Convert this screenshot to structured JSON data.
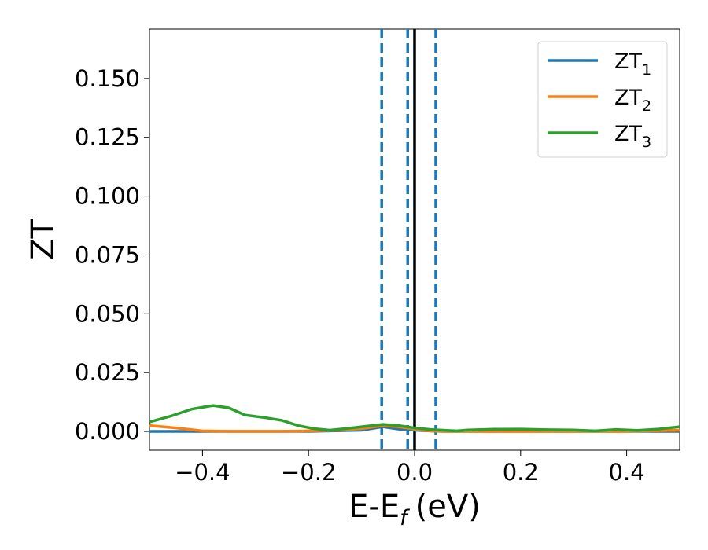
{
  "chart_data": {
    "type": "line",
    "xlabel": "E-E",
    "xlabel_sub": "f",
    "xlabel_unit": "(eV)",
    "ylabel": "ZT",
    "xlim": [
      -0.5,
      0.5
    ],
    "ylim": [
      -0.008,
      0.171
    ],
    "xticks": [
      -0.4,
      -0.2,
      0.0,
      0.2,
      0.4
    ],
    "xtick_labels": [
      "−0.4",
      "−0.2",
      "0.0",
      "0.2",
      "0.4"
    ],
    "yticks": [
      0.0,
      0.025,
      0.05,
      0.075,
      0.1,
      0.125,
      0.15
    ],
    "ytick_labels": [
      "0.000",
      "0.025",
      "0.050",
      "0.075",
      "0.100",
      "0.125",
      "0.150"
    ],
    "grid": false,
    "legend_position": "top-right",
    "vlines": [
      {
        "x": 0.0,
        "style": "solid",
        "color": "#000000"
      },
      {
        "x": -0.062,
        "style": "dashed",
        "color": "#1f77b4"
      },
      {
        "x": -0.013,
        "style": "dashed",
        "color": "#1f77b4"
      },
      {
        "x": 0.04,
        "style": "dashed",
        "color": "#1f77b4"
      }
    ],
    "series": [
      {
        "name": "ZT",
        "name_sub": "1",
        "color": "#1f77b4",
        "x": [
          -0.5,
          -0.4,
          -0.3,
          -0.2,
          -0.1,
          -0.06,
          -0.03,
          0.0,
          0.05,
          0.1,
          0.2,
          0.3,
          0.4,
          0.5
        ],
        "y": [
          0.0,
          0.0,
          0.0,
          0.0,
          0.0005,
          0.002,
          0.001,
          0.0005,
          0.0,
          0.0,
          0.0,
          0.0,
          0.0,
          0.0
        ]
      },
      {
        "name": "ZT",
        "name_sub": "2",
        "color": "#ff7f0e",
        "x": [
          -0.5,
          -0.45,
          -0.4,
          -0.35,
          -0.3,
          -0.25,
          -0.2,
          -0.15,
          -0.1,
          -0.06,
          -0.03,
          0.0,
          0.03,
          0.06,
          0.1,
          0.2,
          0.3,
          0.4,
          0.5
        ],
        "y": [
          0.0025,
          0.0015,
          0.0002,
          0.0,
          0.0,
          0.0,
          0.0002,
          0.0005,
          0.0012,
          0.0025,
          0.002,
          0.001,
          0.0002,
          0.0,
          0.0,
          0.0,
          0.0,
          0.0,
          0.0005
        ]
      },
      {
        "name": "ZT",
        "name_sub": "3",
        "color": "#2ca02c",
        "x": [
          -0.5,
          -0.46,
          -0.42,
          -0.38,
          -0.35,
          -0.32,
          -0.28,
          -0.25,
          -0.22,
          -0.19,
          -0.16,
          -0.13,
          -0.1,
          -0.06,
          -0.03,
          0.0,
          0.03,
          0.06,
          0.08,
          0.1,
          0.15,
          0.2,
          0.25,
          0.3,
          0.34,
          0.38,
          0.42,
          0.46,
          0.5
        ],
        "y": [
          0.004,
          0.0065,
          0.0095,
          0.011,
          0.01,
          0.007,
          0.0058,
          0.0047,
          0.0025,
          0.0012,
          0.0005,
          0.0012,
          0.002,
          0.003,
          0.0025,
          0.0015,
          0.0008,
          0.0004,
          0.0002,
          0.0006,
          0.0009,
          0.001,
          0.0007,
          0.0006,
          0.0002,
          0.0008,
          0.0004,
          0.001,
          0.002
        ]
      }
    ]
  }
}
